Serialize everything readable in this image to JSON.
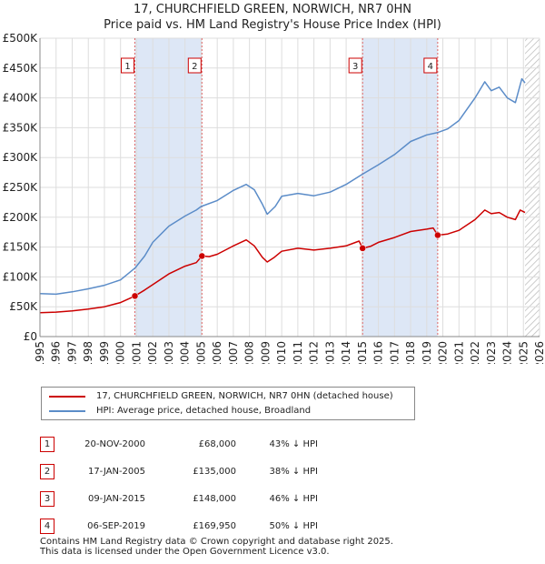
{
  "titles": {
    "line1": "17, CHURCHFIELD GREEN, NORWICH, NR7 0HN",
    "line2": "Price paid vs. HM Land Registry's House Price Index (HPI)"
  },
  "colors": {
    "property": "#cc0000",
    "hpi": "#5b8cc8",
    "shade": "#dde7f6",
    "grid": "#dddddd",
    "marker_line": "#dd6666"
  },
  "chart_data": {
    "type": "line",
    "title": "Price paid vs. HM Land Registry's House Price Index (HPI)",
    "xlim": [
      1995,
      2026
    ],
    "ylim": [
      0,
      500000
    ],
    "x_ticks": [
      "1995",
      "1996",
      "1997",
      "1998",
      "1999",
      "2000",
      "2001",
      "2002",
      "2003",
      "2004",
      "2005",
      "2006",
      "2007",
      "2008",
      "2009",
      "2010",
      "2011",
      "2012",
      "2013",
      "2014",
      "2015",
      "2016",
      "2017",
      "2018",
      "2019",
      "2020",
      "2021",
      "2022",
      "2023",
      "2024",
      "2025",
      "2026"
    ],
    "y_ticks": [
      {
        "value": 0,
        "label": "£0"
      },
      {
        "value": 50000,
        "label": "£50K"
      },
      {
        "value": 100000,
        "label": "£100K"
      },
      {
        "value": 150000,
        "label": "£150K"
      },
      {
        "value": 200000,
        "label": "£200K"
      },
      {
        "value": 250000,
        "label": "£250K"
      },
      {
        "value": 300000,
        "label": "£300K"
      },
      {
        "value": 350000,
        "label": "£350K"
      },
      {
        "value": 400000,
        "label": "£400K"
      },
      {
        "value": 450000,
        "label": "£450K"
      },
      {
        "value": 500000,
        "label": "£500K"
      }
    ],
    "shaded_periods": [
      [
        2000.89,
        2005.05
      ],
      [
        2015.02,
        2019.68
      ]
    ],
    "future_hatch_from": 2025.1,
    "series": [
      {
        "name": "17, CHURCHFIELD GREEN, NORWICH, NR7 0HN (detached house)",
        "color": "#cc0000",
        "points": [
          [
            1995,
            40000
          ],
          [
            1996,
            41000
          ],
          [
            1997,
            43000
          ],
          [
            1998,
            46000
          ],
          [
            1999,
            50000
          ],
          [
            2000,
            57000
          ],
          [
            2000.89,
            68000
          ],
          [
            2001.5,
            78000
          ],
          [
            2002,
            87000
          ],
          [
            2003,
            105000
          ],
          [
            2004,
            118000
          ],
          [
            2004.7,
            124000
          ],
          [
            2005.05,
            135000
          ],
          [
            2005.5,
            134000
          ],
          [
            2006,
            138000
          ],
          [
            2007,
            152000
          ],
          [
            2007.8,
            162000
          ],
          [
            2008.3,
            152000
          ],
          [
            2008.8,
            133000
          ],
          [
            2009.1,
            125000
          ],
          [
            2009.5,
            132000
          ],
          [
            2010,
            143000
          ],
          [
            2011,
            148000
          ],
          [
            2012,
            145000
          ],
          [
            2013,
            148000
          ],
          [
            2014,
            152000
          ],
          [
            2014.8,
            160000
          ],
          [
            2015.02,
            148000
          ],
          [
            2015.5,
            151000
          ],
          [
            2016,
            158000
          ],
          [
            2017,
            166000
          ],
          [
            2018,
            176000
          ],
          [
            2019,
            180000
          ],
          [
            2019.4,
            182000
          ],
          [
            2019.68,
            169950
          ],
          [
            2020.3,
            172000
          ],
          [
            2021,
            178000
          ],
          [
            2022,
            196000
          ],
          [
            2022.6,
            212000
          ],
          [
            2023,
            206000
          ],
          [
            2023.5,
            208000
          ],
          [
            2024,
            200000
          ],
          [
            2024.5,
            196000
          ],
          [
            2024.8,
            212000
          ],
          [
            2025.1,
            208000
          ]
        ]
      },
      {
        "name": "HPI: Average price, detached house, Broadland",
        "color": "#5b8cc8",
        "points": [
          [
            1995,
            72000
          ],
          [
            1996,
            71000
          ],
          [
            1997,
            75000
          ],
          [
            1998,
            80000
          ],
          [
            1999,
            86000
          ],
          [
            2000,
            95000
          ],
          [
            2000.9,
            115000
          ],
          [
            2001.5,
            135000
          ],
          [
            2002,
            158000
          ],
          [
            2003,
            185000
          ],
          [
            2004,
            202000
          ],
          [
            2004.7,
            212000
          ],
          [
            2005,
            218000
          ],
          [
            2006,
            228000
          ],
          [
            2007,
            245000
          ],
          [
            2007.8,
            255000
          ],
          [
            2008.3,
            246000
          ],
          [
            2008.8,
            222000
          ],
          [
            2009.1,
            205000
          ],
          [
            2009.6,
            218000
          ],
          [
            2010,
            235000
          ],
          [
            2011,
            240000
          ],
          [
            2012,
            236000
          ],
          [
            2013,
            242000
          ],
          [
            2014,
            255000
          ],
          [
            2015,
            272000
          ],
          [
            2016,
            288000
          ],
          [
            2017,
            305000
          ],
          [
            2018,
            327000
          ],
          [
            2019,
            338000
          ],
          [
            2019.7,
            342000
          ],
          [
            2020.3,
            348000
          ],
          [
            2021,
            362000
          ],
          [
            2022,
            400000
          ],
          [
            2022.6,
            427000
          ],
          [
            2023,
            412000
          ],
          [
            2023.5,
            418000
          ],
          [
            2024,
            400000
          ],
          [
            2024.5,
            392000
          ],
          [
            2024.9,
            432000
          ],
          [
            2025.1,
            425000
          ]
        ]
      }
    ],
    "sale_markers": [
      {
        "label": "1",
        "x": 2000.89,
        "value": 68000
      },
      {
        "label": "2",
        "x": 2005.05,
        "value": 135000
      },
      {
        "label": "3",
        "x": 2015.02,
        "value": 148000
      },
      {
        "label": "4",
        "x": 2019.68,
        "value": 169950
      }
    ]
  },
  "legend": {
    "property_label": "17, CHURCHFIELD GREEN, NORWICH, NR7 0HN (detached house)",
    "hpi_label": "HPI: Average price, detached house, Broadland"
  },
  "sales": [
    {
      "num": "1",
      "date": "20-NOV-2000",
      "price": "£68,000",
      "hpi": "43% ↓ HPI"
    },
    {
      "num": "2",
      "date": "17-JAN-2005",
      "price": "£135,000",
      "hpi": "38% ↓ HPI"
    },
    {
      "num": "3",
      "date": "09-JAN-2015",
      "price": "£148,000",
      "hpi": "46% ↓ HPI"
    },
    {
      "num": "4",
      "date": "06-SEP-2019",
      "price": "£169,950",
      "hpi": "50% ↓ HPI"
    }
  ],
  "footer": {
    "line1": "Contains HM Land Registry data © Crown copyright and database right 2025.",
    "line2": "This data is licensed under the Open Government Licence v3.0."
  }
}
